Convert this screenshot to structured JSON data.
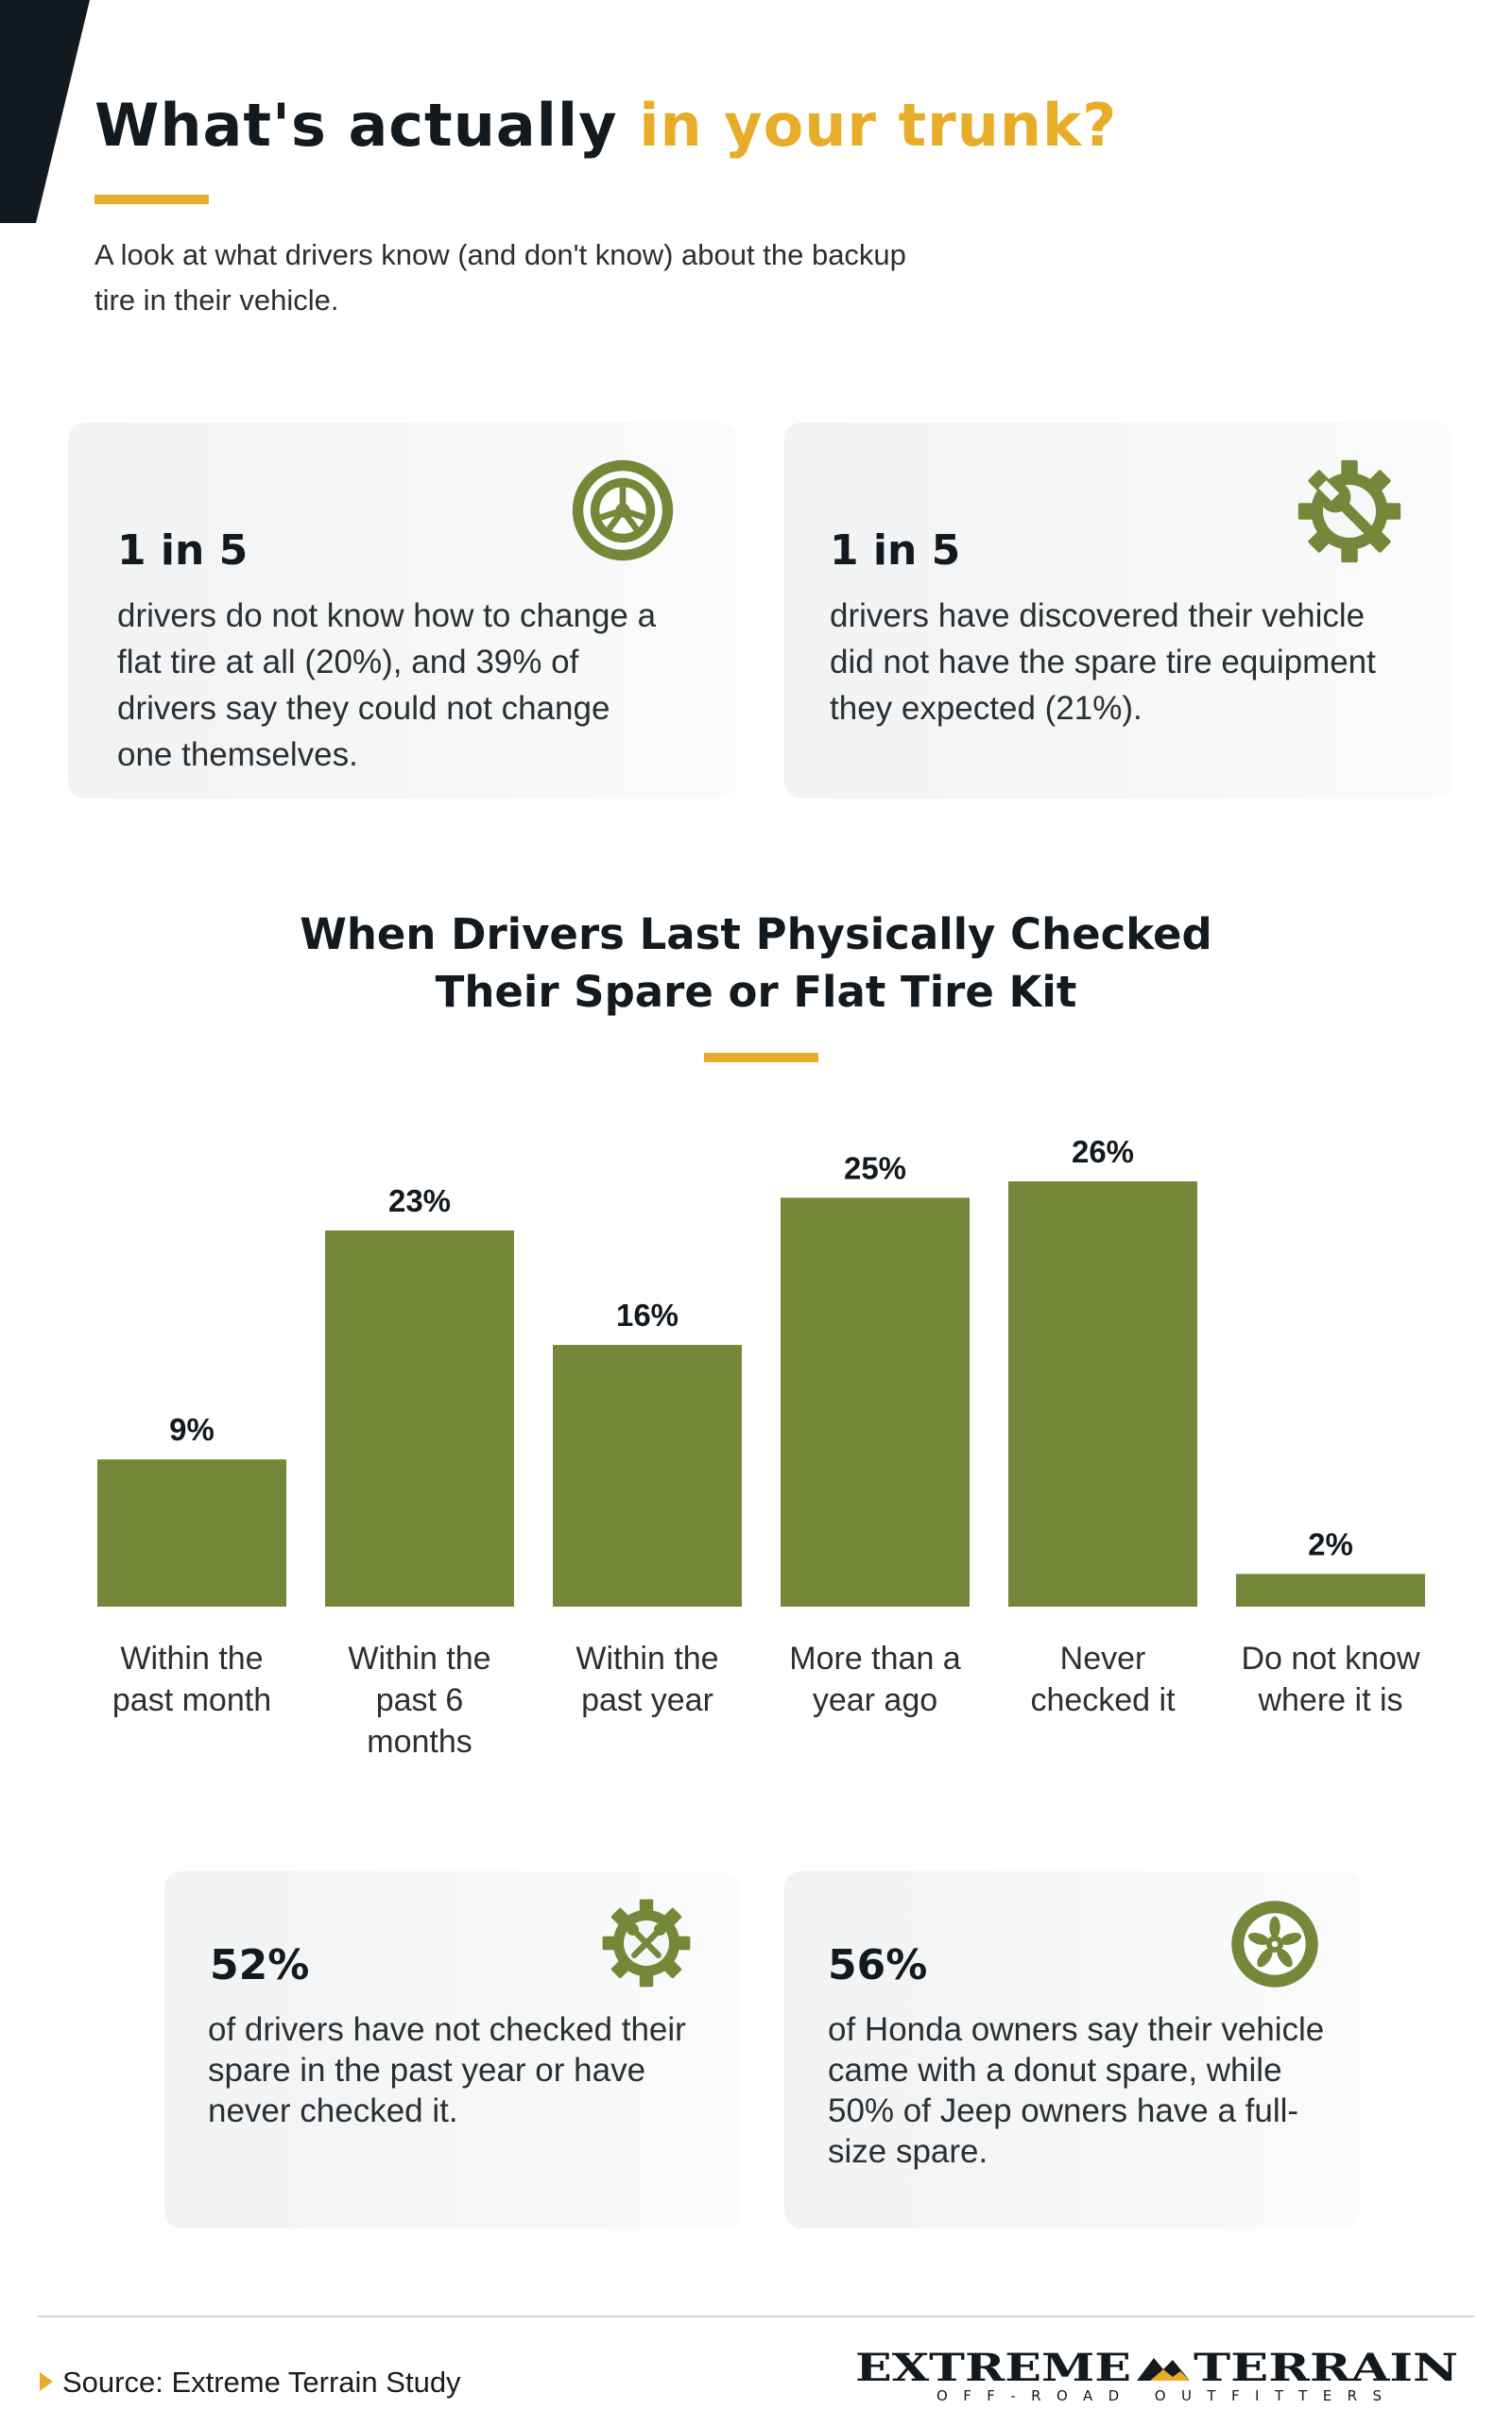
{
  "header": {
    "title_main": "What's actually",
    "title_accent": "in your trunk?",
    "intro": "A look at what drivers know (and don't know) about the backup tire in their vehicle."
  },
  "cards": [
    {
      "stat": "1 in 5",
      "text": "drivers do not know how to change a flat tire at all (20%), and 39% of drivers say they could not change one themselves.",
      "icon": "tire-icon"
    },
    {
      "stat": "1 in 5",
      "text": "drivers have discovered their vehicle did not have the spare tire equipment they expected (21%).",
      "icon": "gear-wrench-icon"
    },
    {
      "stat": "52%",
      "text": "of drivers have not checked their spare in the past year or have never checked it.",
      "icon": "gear-tools-icon"
    },
    {
      "stat": "56%",
      "text": "of Honda owners say their vehicle came with a donut spare, while 50% of Jeep owners have a full-size spare.",
      "icon": "wheel-icon"
    }
  ],
  "chart_data": {
    "type": "bar",
    "title": [
      "When Drivers Last Physically Checked",
      "Their Spare or Flat Tire Kit"
    ],
    "categories": [
      [
        "Within the",
        "past month"
      ],
      [
        "Within the",
        "past 6",
        "months"
      ],
      [
        "Within the",
        "past year"
      ],
      [
        "More than a",
        "year ago"
      ],
      [
        "Never",
        "checked it"
      ],
      [
        "Do not know",
        "where it is"
      ]
    ],
    "values": [
      9,
      23,
      16,
      25,
      26,
      2
    ],
    "data_labels": [
      "9%",
      "23%",
      "16%",
      "25%",
      "26%",
      "2%"
    ],
    "ylim": [
      0,
      26
    ],
    "grid": false,
    "bar_color": "#758839"
  },
  "footer": {
    "source": "Source: Extreme Terrain Study",
    "logo_word_1": "EXTREME",
    "logo_word_2": "TERRAIN",
    "logo_tagline": "OFF-ROAD OUTFITTERS"
  },
  "colors": {
    "accent": "#e8ad28",
    "olive": "#758839",
    "dark": "#131a1f"
  }
}
